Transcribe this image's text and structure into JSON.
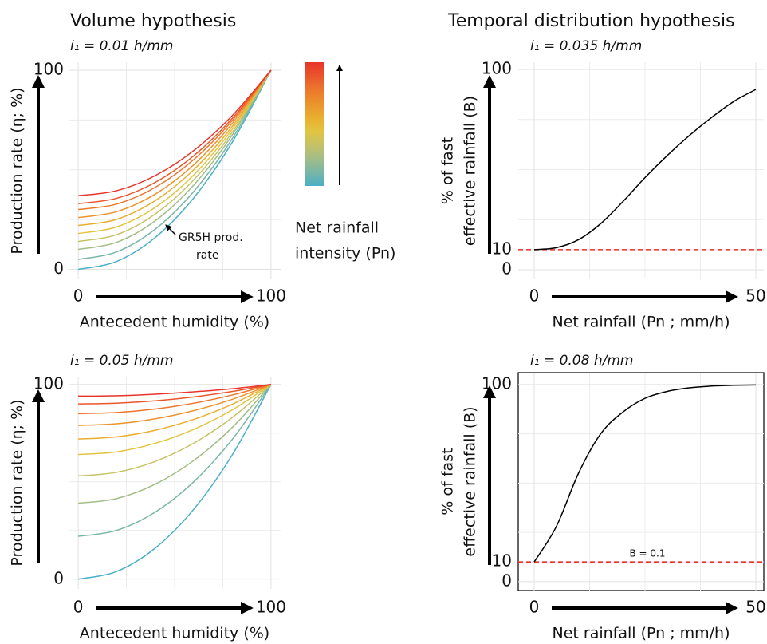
{
  "chart_data": [
    {
      "type": "line",
      "title": "Volume hypothesis",
      "subtitle": "i₁ = 0.01 h/mm",
      "ylabel": "Production rate (η; %)",
      "xlabel": "Antecedent humidity (%)",
      "xlim": [
        -5,
        105
      ],
      "ylim": [
        -5,
        104
      ],
      "xticks": [
        0,
        100
      ],
      "yticks": [
        0,
        100
      ],
      "grid": true,
      "x": [
        0,
        20,
        40,
        60,
        80,
        100
      ],
      "series": [
        {
          "color": "#4aafc8",
          "values": [
            0,
            4,
            16,
            36,
            64,
            100
          ]
        },
        {
          "color": "#79b6a6",
          "values": [
            5,
            8.8,
            20.2,
            39.2,
            65.8,
            100
          ]
        },
        {
          "color": "#a2bd87",
          "values": [
            10,
            13.6,
            24.4,
            42.4,
            67.6,
            100
          ]
        },
        {
          "color": "#c6c266",
          "values": [
            14,
            17.4,
            27.8,
            45,
            69,
            100
          ]
        },
        {
          "color": "#e2c43f",
          "values": [
            18,
            21.3,
            31.1,
            47.5,
            70.5,
            100
          ]
        },
        {
          "color": "#e8ae2f",
          "values": [
            22,
            25.1,
            34.5,
            50.1,
            71.9,
            100
          ]
        },
        {
          "color": "#eb932c",
          "values": [
            26,
            29,
            37.8,
            52.6,
            73.4,
            100
          ]
        },
        {
          "color": "#ec772c",
          "values": [
            30,
            32.8,
            41.2,
            55.2,
            74.8,
            100
          ]
        },
        {
          "color": "#ea562b",
          "values": [
            33,
            35.7,
            43.7,
            57.1,
            75.9,
            100
          ]
        },
        {
          "color": "#e8342a",
          "values": [
            37,
            39.5,
            47.1,
            59.7,
            77.3,
            100
          ]
        }
      ],
      "annotation": [
        "GR5H prod.",
        "rate"
      ],
      "colorbar": true,
      "legend_title": [
        "Net rainfall",
        "intensity (Pn)"
      ]
    },
    {
      "type": "line",
      "title": "Temporal distribution hypothesis",
      "subtitle": "i₁ = 0.035 h/mm",
      "ylabel": [
        "% of fast",
        "effective rainfall (B)"
      ],
      "xlabel": "Net rainfall (Pn ; mm/h)",
      "xlim": [
        -3.6,
        51.8
      ],
      "ylim": [
        -4.8,
        103.6
      ],
      "xticks": [
        0,
        50
      ],
      "yticks": [
        0,
        10,
        100
      ],
      "grid": true,
      "x": [
        0,
        5,
        10,
        15,
        20,
        25,
        30,
        35,
        40,
        45,
        50
      ],
      "series": [
        {
          "color": "#000000",
          "values": [
            10,
            11,
            15,
            23,
            34,
            46,
            57,
            67,
            76,
            84,
            90
          ]
        }
      ],
      "hline": {
        "value": 10,
        "color": "#e8302a"
      }
    },
    {
      "type": "line",
      "subtitle": "i₁ = 0.05 h/mm",
      "ylabel": "Production rate (η; %)",
      "xlabel": "Antecedent humidity (%)",
      "xlim": [
        -5,
        105
      ],
      "ylim": [
        -5,
        104
      ],
      "xticks": [
        0,
        100
      ],
      "yticks": [
        0,
        100
      ],
      "grid": true,
      "x": [
        0,
        20,
        40,
        60,
        80,
        100
      ],
      "series": [
        {
          "color": "#4aafc8",
          "values": [
            0,
            4,
            16,
            36,
            64,
            100
          ]
        },
        {
          "color": "#79b6a6",
          "values": [
            22,
            25.1,
            34.5,
            50.1,
            71.9,
            100
          ]
        },
        {
          "color": "#a2bd87",
          "values": [
            39,
            41.4,
            48.8,
            61,
            78,
            100
          ]
        },
        {
          "color": "#c6c266",
          "values": [
            53,
            54.9,
            60.5,
            69.9,
            83.1,
            100
          ]
        },
        {
          "color": "#e2c43f",
          "values": [
            64,
            65.4,
            69.8,
            77,
            87,
            100
          ]
        },
        {
          "color": "#e8ae2f",
          "values": [
            72,
            73.1,
            76.5,
            82.1,
            89.9,
            100
          ]
        },
        {
          "color": "#eb932c",
          "values": [
            79,
            79.8,
            82.4,
            86.6,
            92.4,
            100
          ]
        },
        {
          "color": "#ec772c",
          "values": [
            85,
            85.6,
            87.4,
            90.4,
            94.6,
            100
          ]
        },
        {
          "color": "#ea562b",
          "values": [
            90,
            90.4,
            91.6,
            93.6,
            96.4,
            100
          ]
        },
        {
          "color": "#e8342a",
          "values": [
            94,
            94.2,
            95,
            96.2,
            97.8,
            100
          ]
        }
      ]
    },
    {
      "type": "line",
      "subtitle": "i₁ = 0.08 h/mm",
      "ylabel": [
        "% of fast",
        "effective rainfall (B)"
      ],
      "xlabel": "Net rainfall (Pn ; mm/h)",
      "xlim": [
        -3.6,
        51.8
      ],
      "ylim": [
        -4.5,
        106
      ],
      "xticks": [
        0,
        50
      ],
      "yticks": [
        0,
        10,
        100
      ],
      "grid": true,
      "frame": true,
      "x": [
        0,
        5,
        10,
        15,
        20,
        25,
        30,
        35,
        40,
        45,
        50
      ],
      "series": [
        {
          "color": "#000000",
          "values": [
            10,
            28,
            55,
            75,
            86,
            93,
            96.5,
            98.3,
            99.2,
            99.6,
            99.8
          ]
        }
      ],
      "hline": {
        "value": 10,
        "color": "#e8302a"
      },
      "annotation": "B = 0.1"
    }
  ]
}
